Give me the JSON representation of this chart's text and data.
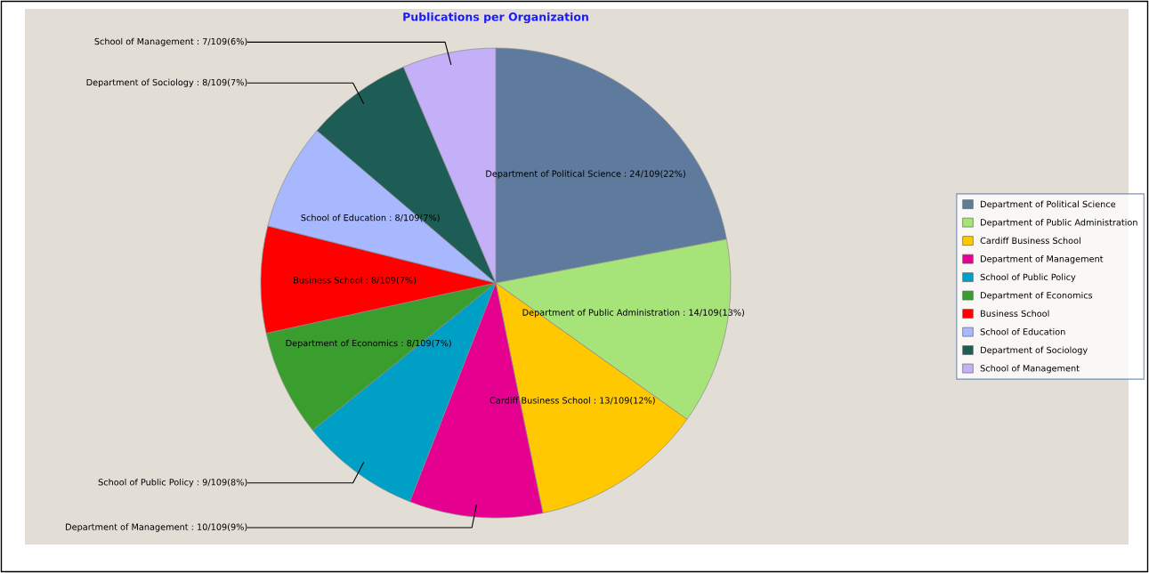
{
  "chart_data": {
    "type": "pie",
    "title": "Publications per Organization",
    "categories": [
      "Department of Political Science",
      "Department of Public Administration",
      "Cardiff Business School",
      "Department of Management",
      "School of Public Policy",
      "Department of Economics",
      "Business School",
      "School of Education",
      "Department of Sociology",
      "School of Management"
    ],
    "values": [
      24,
      14,
      13,
      10,
      9,
      8,
      8,
      8,
      8,
      7
    ],
    "colors": [
      "#5e7b9e",
      "#a6e378",
      "#ffc800",
      "#e6008f",
      "#00a0c6",
      "#3a9e2f",
      "#ff0000",
      "#a8b8ff",
      "#1e5c56",
      "#c4b0f8"
    ],
    "value_labels": [
      "Department of Political Science : 24/109(22%)",
      "Department of Public Administration : 14/109(13%)",
      "Cardiff Business School : 13/109(12%)",
      "Department of Management : 10/109(9%)",
      "School of Public Policy : 9/109(8%)",
      "Department of Economics : 8/109(7%)",
      "Business School : 8/109(7%)",
      "School of Education : 8/109(7%)",
      "Department of Sociology : 8/109(7%)",
      "School of Management : 7/109(6%)"
    ],
    "legend": "right"
  }
}
